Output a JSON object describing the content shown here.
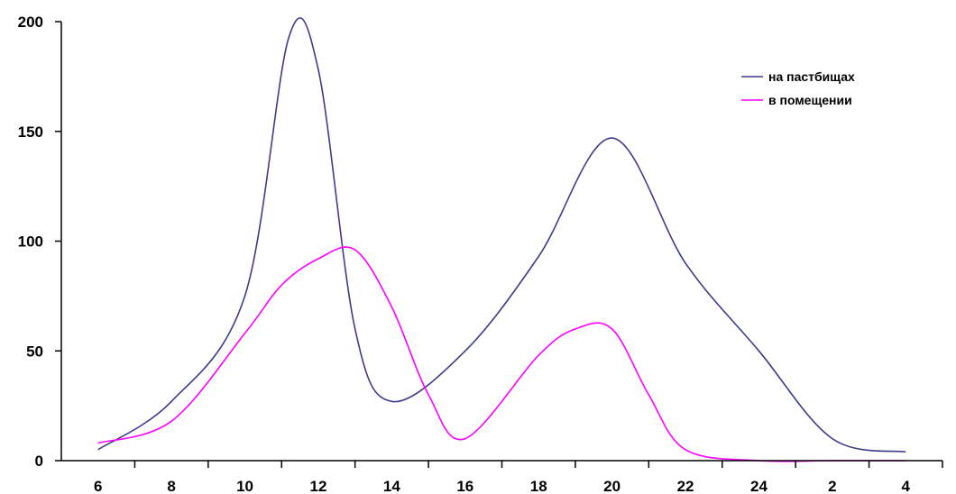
{
  "chart_data": {
    "type": "line",
    "title": "",
    "xlabel": "",
    "ylabel": "",
    "categories": [
      "6",
      "8",
      "10",
      "12",
      "14",
      "16",
      "18",
      "20",
      "22",
      "24",
      "2",
      "4"
    ],
    "ylim": [
      0,
      200
    ],
    "yticks": [
      0,
      50,
      100,
      150,
      200
    ],
    "grid": false,
    "legend_position": "top-right",
    "series": [
      {
        "name": "на пастбищах",
        "color": "#3c3c8c",
        "points": [
          [
            0,
            5
          ],
          [
            1,
            27
          ],
          [
            2,
            75
          ],
          [
            2.6,
            193
          ],
          [
            3,
            178
          ],
          [
            3.5,
            60
          ],
          [
            4,
            27
          ],
          [
            5,
            50
          ],
          [
            6,
            93
          ],
          [
            7,
            147
          ],
          [
            8,
            90
          ],
          [
            9,
            50
          ],
          [
            10,
            10
          ],
          [
            11,
            4
          ]
        ]
      },
      {
        "name": "в помещении",
        "color": "#ff00ff",
        "points": [
          [
            0,
            8
          ],
          [
            1,
            18
          ],
          [
            2,
            58
          ],
          [
            2.5,
            80
          ],
          [
            3,
            92
          ],
          [
            3.5,
            96
          ],
          [
            4,
            70
          ],
          [
            4.5,
            30
          ],
          [
            5,
            10
          ],
          [
            6,
            48
          ],
          [
            6.5,
            60
          ],
          [
            7,
            60
          ],
          [
            7.5,
            30
          ],
          [
            8,
            5
          ],
          [
            9,
            0
          ],
          [
            10,
            0
          ],
          [
            11,
            0
          ]
        ]
      }
    ]
  }
}
